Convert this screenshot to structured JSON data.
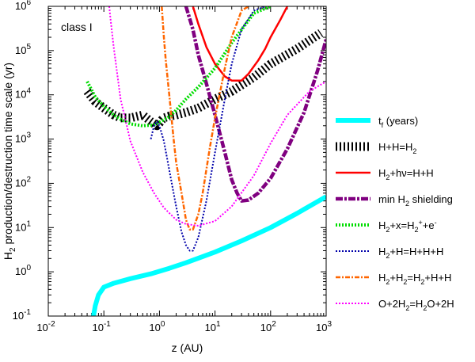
{
  "chart_data": {
    "type": "line",
    "annotation": "class I",
    "xlabel": "z (AU)",
    "ylabel_parts": [
      "H",
      "2",
      " production/destruction time scale (yr)"
    ],
    "x_scale": "log",
    "y_scale": "log",
    "xlim": [
      0.01,
      1000
    ],
    "ylim": [
      0.1,
      1000000
    ],
    "x_ticks": [
      {
        "value": 0.01,
        "base": "10",
        "exp": "-2"
      },
      {
        "value": 0.1,
        "base": "10",
        "exp": "-1"
      },
      {
        "value": 1,
        "base": "10",
        "exp": "0"
      },
      {
        "value": 10,
        "base": "10",
        "exp": "1"
      },
      {
        "value": 100,
        "base": "10",
        "exp": "2"
      },
      {
        "value": 1000,
        "base": "10",
        "exp": "3"
      }
    ],
    "y_ticks": [
      {
        "value": 0.1,
        "base": "10",
        "exp": "-1"
      },
      {
        "value": 1,
        "base": "10",
        "exp": "0"
      },
      {
        "value": 10,
        "base": "10",
        "exp": "1"
      },
      {
        "value": 100,
        "base": "10",
        "exp": "2"
      },
      {
        "value": 1000,
        "base": "10",
        "exp": "3"
      },
      {
        "value": 10000,
        "base": "10",
        "exp": "4"
      },
      {
        "value": 100000,
        "base": "10",
        "exp": "5"
      },
      {
        "value": 1000000,
        "base": "10",
        "exp": "6"
      }
    ],
    "legend_position": "right, outside plot",
    "series": [
      {
        "name": "t_f (years)",
        "color": "#00ffff",
        "style": "thick-solid",
        "legend": [
          [
            "t"
          ],
          [
            "f",
            "sub"
          ],
          [
            " (years)"
          ]
        ],
        "x": [
          0.065,
          0.07,
          0.08,
          0.1,
          0.15,
          0.3,
          0.7,
          1.5,
          3,
          10,
          30,
          100,
          300,
          1000
        ],
        "y": [
          0.1,
          0.17,
          0.3,
          0.45,
          0.55,
          0.7,
          0.9,
          1.2,
          1.6,
          2.8,
          5,
          10,
          21,
          50
        ]
      },
      {
        "name": "H+H=H2",
        "color": "#000000",
        "style": "hatched",
        "legend": [
          [
            "H+H=H"
          ],
          [
            "2",
            "sub"
          ]
        ],
        "x": [
          0.05,
          0.07,
          0.1,
          0.15,
          0.2,
          0.3,
          0.5,
          0.7,
          0.9,
          1.0,
          1.1,
          1.2,
          1.5,
          2,
          3,
          5,
          10,
          20,
          50,
          100,
          300,
          800
        ],
        "y": [
          12000,
          7000,
          5000,
          3500,
          3000,
          3000,
          3500,
          2500,
          2000,
          2300,
          2700,
          3000,
          3300,
          3500,
          4000,
          5000,
          8000,
          12000,
          25000,
          50000,
          110000,
          250000
        ]
      },
      {
        "name": "H2+hv=H+H",
        "color": "#ff0000",
        "style": "solid",
        "legend": [
          [
            "H"
          ],
          [
            "2",
            "sub"
          ],
          [
            "+hν=H+H"
          ]
        ],
        "x": [
          4,
          5,
          7,
          10,
          15,
          20,
          30,
          40,
          60,
          80,
          100,
          150,
          200
        ],
        "y": [
          1000000,
          400000,
          120000,
          50000,
          26000,
          21000,
          21000,
          30000,
          60000,
          110000,
          200000,
          500000,
          1000000
        ]
      },
      {
        "name": "min H2 shielding",
        "color": "#800080",
        "style": "thick-dashdot",
        "legend": [
          [
            "min H"
          ],
          [
            "2",
            "sub"
          ],
          [
            " shielding"
          ]
        ],
        "x": [
          3,
          4,
          5,
          7,
          10,
          15,
          20,
          25,
          30,
          40,
          60,
          100,
          200,
          400,
          700,
          1000
        ],
        "y": [
          1000000,
          300000,
          80000,
          18000,
          3500,
          500,
          120,
          60,
          40,
          42,
          60,
          130,
          600,
          4000,
          35000,
          180000
        ]
      },
      {
        "name": "H2+x=H2++e-",
        "color": "#00dd00",
        "style": "thick-dotted",
        "legend": [
          [
            "H"
          ],
          [
            "2",
            "sub"
          ],
          [
            "+x=H"
          ],
          [
            "2",
            "sub"
          ],
          [
            "+",
            "sup"
          ],
          [
            "+e"
          ],
          [
            "-",
            "sup"
          ]
        ],
        "x": [
          0.05,
          0.07,
          0.1,
          0.15,
          0.2,
          0.3,
          0.5,
          0.8,
          1,
          1.5,
          2,
          3,
          5,
          10,
          20,
          50,
          100
        ],
        "y": [
          20000,
          9000,
          5500,
          3500,
          2800,
          2200,
          2000,
          2100,
          2400,
          3200,
          4500,
          8000,
          15000,
          40000,
          150000,
          700000,
          1000000
        ]
      },
      {
        "name": "H2+H=H+H+H",
        "color": "#0000aa",
        "style": "dotted",
        "legend": [
          [
            "H"
          ],
          [
            "2",
            "sub"
          ],
          [
            "+H=H+H+H"
          ]
        ],
        "x": [
          0.7,
          0.8,
          0.9,
          1,
          1.2,
          1.5,
          2,
          2.5,
          3,
          3.5,
          4,
          5,
          7,
          10,
          15,
          20,
          30,
          50,
          80
        ],
        "y": [
          1000,
          2000,
          2500,
          2000,
          900,
          200,
          30,
          8,
          4,
          3,
          3,
          6,
          40,
          500,
          8000,
          50000,
          300000,
          800000,
          1000000
        ]
      },
      {
        "name": "H2+H2=H2+H+H",
        "color": "#ff6600",
        "style": "dashdot",
        "legend": [
          [
            "H"
          ],
          [
            "2",
            "sub"
          ],
          [
            "+H"
          ],
          [
            "2",
            "sub"
          ],
          [
            "=H"
          ],
          [
            "2",
            "sub"
          ],
          [
            "+H+H"
          ]
        ],
        "x": [
          1.1,
          1.2,
          1.3,
          1.5,
          1.8,
          2,
          2.5,
          3,
          3.5,
          4,
          5,
          6,
          8,
          10,
          15,
          20,
          30,
          40
        ],
        "y": [
          1000000,
          200000,
          60000,
          10000,
          1000,
          300,
          60,
          15,
          9,
          9,
          20,
          60,
          600,
          3000,
          40000,
          200000,
          800000,
          1000000
        ]
      },
      {
        "name": "O+2H2=H2O+2H",
        "color": "#ff00ff",
        "style": "dotted",
        "legend": [
          [
            "O+2H"
          ],
          [
            "2",
            "sub"
          ],
          [
            "=H"
          ],
          [
            "2",
            "sub"
          ],
          [
            "O+2H"
          ]
        ],
        "x": [
          0.125,
          0.13,
          0.15,
          0.2,
          0.3,
          0.5,
          0.8,
          1.2,
          2,
          3,
          5,
          10,
          20,
          50,
          100,
          200,
          500,
          1000
        ],
        "y": [
          1000000,
          600000,
          120000,
          8000,
          900,
          180,
          60,
          28,
          15,
          12,
          11,
          14,
          30,
          150,
          800,
          3500,
          12000,
          20000
        ]
      }
    ]
  }
}
